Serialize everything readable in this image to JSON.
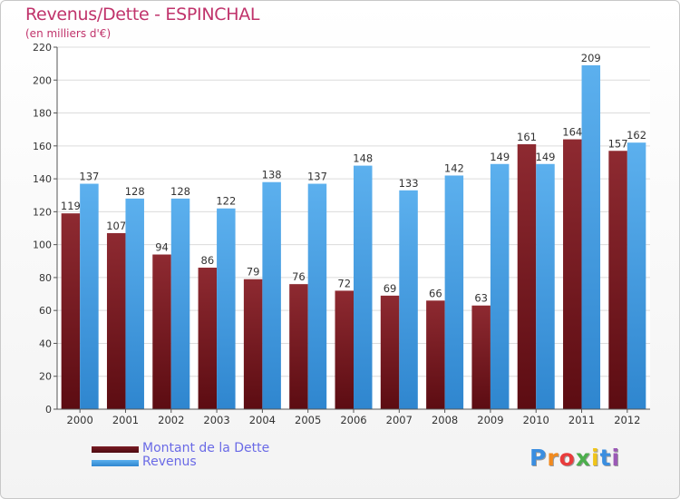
{
  "chart_data": {
    "type": "bar",
    "title": "Revenus/Dette - ESPINCHAL",
    "subtitle": "(en milliers d'€)",
    "categories": [
      "2000",
      "2001",
      "2002",
      "2003",
      "2004",
      "2005",
      "2006",
      "2007",
      "2008",
      "2009",
      "2010",
      "2011",
      "2012"
    ],
    "series": [
      {
        "name": "Montant de la Dette",
        "color": "#7a1c24",
        "values": [
          119,
          107,
          94,
          86,
          79,
          76,
          72,
          69,
          66,
          63,
          161,
          164,
          157
        ]
      },
      {
        "name": "Revenus",
        "color": "#4aa3e6",
        "values": [
          137,
          128,
          128,
          122,
          138,
          137,
          148,
          133,
          142,
          149,
          149,
          209,
          162
        ]
      }
    ],
    "ylim": [
      0,
      220
    ],
    "yticks": [
      0,
      20,
      40,
      60,
      80,
      100,
      120,
      140,
      160,
      180,
      200,
      220
    ],
    "grid": true,
    "legend": "bottom-left"
  },
  "logo": {
    "letters": [
      "P",
      "r",
      "o",
      "x",
      "i",
      "t",
      "i"
    ],
    "colors": [
      "#3a8ee0",
      "#f28a1e",
      "#e93c3c",
      "#4cae4c",
      "#f0c419",
      "#3a8ee0",
      "#9b59b6"
    ]
  }
}
